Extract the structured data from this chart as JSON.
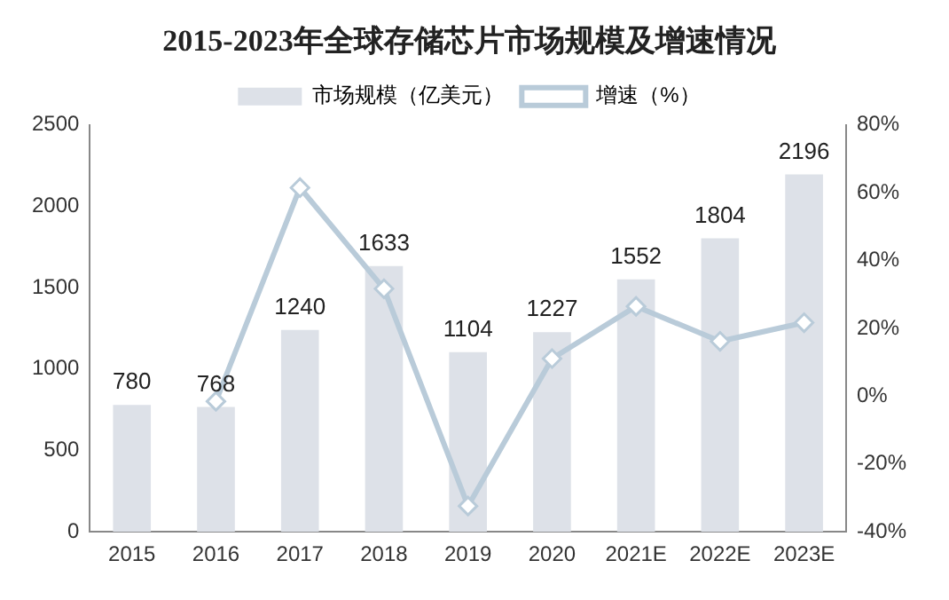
{
  "chart_data": {
    "type": "bar",
    "title": "2015-2023年全球存储芯片市场规模及增速情况",
    "categories": [
      "2015",
      "2016",
      "2017",
      "2018",
      "2019",
      "2020",
      "2021E",
      "2022E",
      "2023E"
    ],
    "series": [
      {
        "name": "市场规模（亿美元）",
        "color": "#dde1e8",
        "values": [
          780,
          768,
          1240,
          1633,
          1104,
          1227,
          1552,
          1804,
          2196
        ],
        "value_labels": [
          "780",
          "768",
          "1240",
          "1633",
          "1104",
          "1227",
          "1552",
          "1804",
          "2196"
        ]
      },
      {
        "name": "增速（%）",
        "type": "line",
        "axis": "y2",
        "color": "#b9cbd9",
        "marker": "diamond",
        "values": [
          null,
          -1.5,
          61.5,
          31.7,
          -32.4,
          11.1,
          26.5,
          16.2,
          21.7
        ]
      }
    ],
    "ylim": [
      0,
      2500
    ],
    "yticks": [
      0,
      500,
      1000,
      1500,
      2000,
      2500
    ],
    "y2lim": [
      -40,
      80
    ],
    "y2ticks": [
      {
        "value": -40,
        "label": "-40%"
      },
      {
        "value": -20,
        "label": "-20%"
      },
      {
        "value": 0,
        "label": "0%"
      },
      {
        "value": 20,
        "label": "20%"
      },
      {
        "value": 40,
        "label": "40%"
      },
      {
        "value": 60,
        "label": "60%"
      },
      {
        "value": 80,
        "label": "80%"
      }
    ],
    "grid": false,
    "legend": "top"
  }
}
